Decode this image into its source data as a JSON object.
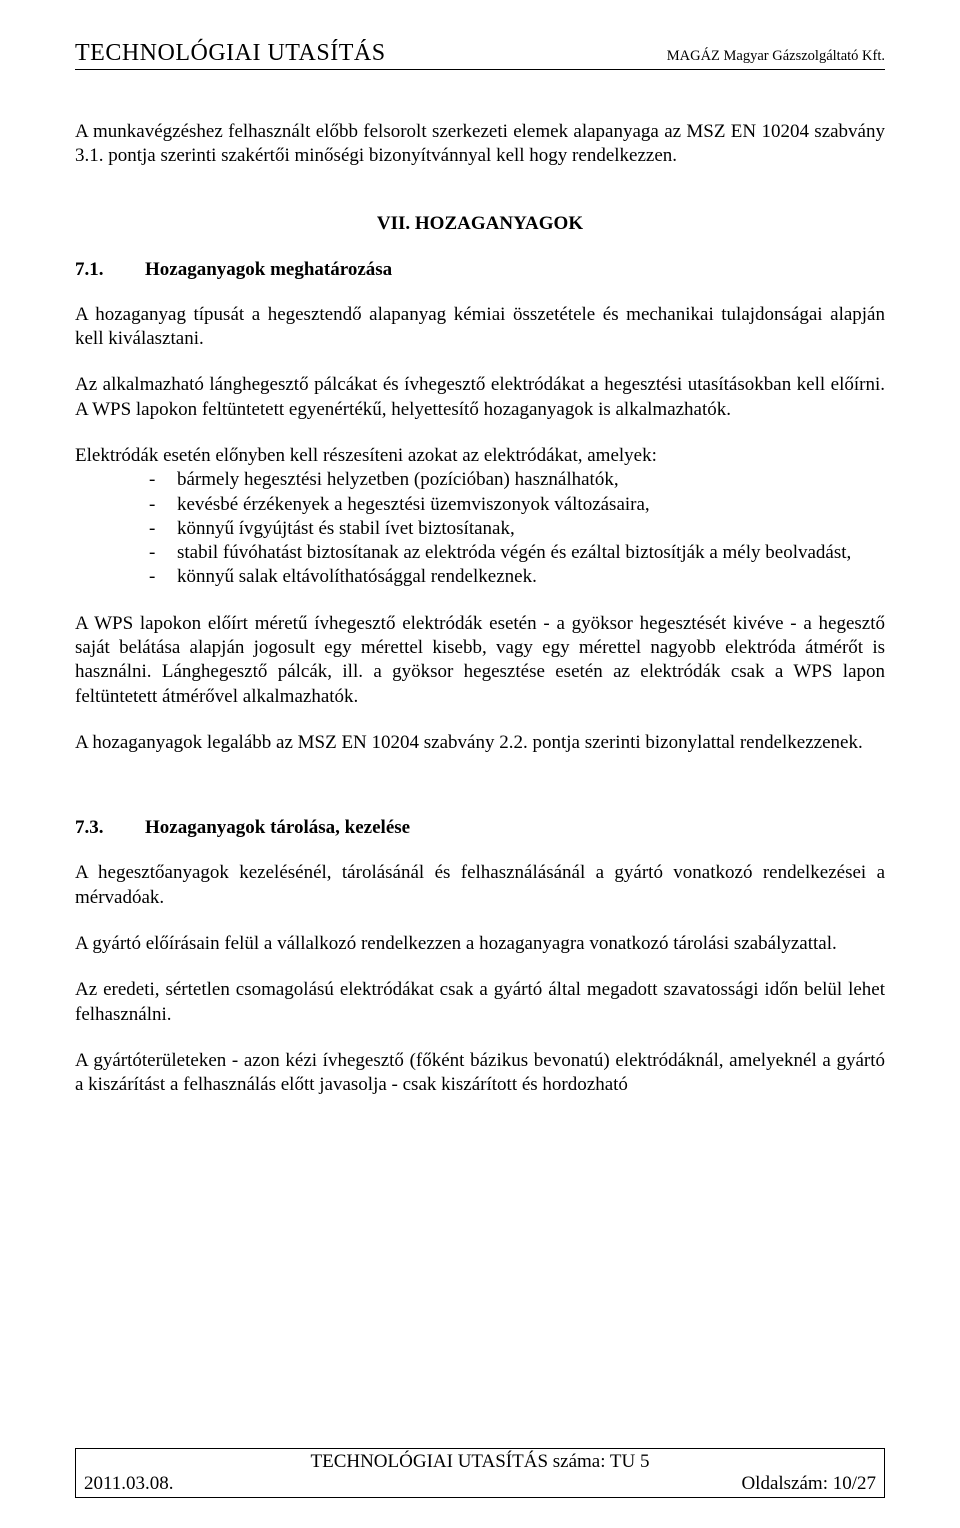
{
  "header": {
    "left": "TECHNOLÓGIAI UTASÍTÁS",
    "right": "MAGÁZ Magyar Gázszolgáltató Kft."
  },
  "intro": {
    "p1": "A munkavégzéshez felhasznált előbb felsorolt szerkezeti elemek alapanyaga az MSZ EN 10204 szabvány 3.1. pontja szerinti szakértői minőségi bizonyítvánnyal kell hogy rendelkezzen."
  },
  "section7": {
    "title": "VII.    HOZAGANYAGOK"
  },
  "section71": {
    "num": "7.1.",
    "title": "Hozaganyagok meghatározása",
    "p1": "A hozaganyag típusát a hegesztendő alapanyag kémiai összetétele és mechanikai tulajdonságai alapján kell kiválasztani.",
    "p2": "Az alkalmazható lánghegesztő pálcákat és ívhegesztő elektródákat a hegesztési utasításokban kell előírni. A WPS lapokon feltüntetett egyenértékű, helyettesítő hozaganyagok is alkalmazhatók.",
    "list_intro": "Elektródák esetén előnyben kell részesíteni azokat az elektródákat, amelyek:",
    "list": {
      "i1": "bármely hegesztési helyzetben (pozícióban) használhatók,",
      "i2": "kevésbé érzékenyek a hegesztési üzemviszonyok változásaira,",
      "i3": "könnyű ívgyújtást és stabil ívet biztosítanak,",
      "i4": "stabil fúvóhatást biztosítanak az elektróda végén és ezáltal biztosítják a mély beolvadást,",
      "i5": "könnyű salak eltávolíthatósággal rendelkeznek."
    },
    "p3": "A WPS lapokon előírt méretű ívhegesztő elektródák esetén - a gyöksor hegesztését kivéve - a hegesztő saját belátása alapján jogosult egy mérettel kisebb, vagy egy mérettel nagyobb elektróda átmérőt is használni. Lánghegesztő pálcák, ill. a gyöksor hegesztése esetén az elektródák csak a WPS lapon feltüntetett átmérővel alkalmazhatók.",
    "p4": "A hozaganyagok legalább az MSZ EN 10204 szabvány 2.2. pontja szerinti bizonylattal rendelkezzenek."
  },
  "section73": {
    "num": "7.3.",
    "title": "Hozaganyagok tárolása, kezelése",
    "p1": "A hegesztőanyagok kezelésénél, tárolásánál és felhasználásánál a gyártó vonatkozó rendelkezései a mérvadóak.",
    "p2": "A gyártó előírásain felül a vállalkozó rendelkezzen a hozaganyagra vonatkozó tárolási szabályzattal.",
    "p3": "Az eredeti, sértetlen csomagolású elektródákat csak a gyártó által megadott szavatossági időn belül lehet felhasználni.",
    "p4": "A gyártóterületeken - azon kézi ívhegesztő (főként bázikus bevonatú) elektródáknál, amelyeknél a gyártó a kiszárítást a felhasználás előtt javasolja - csak kiszárított és hordozható"
  },
  "footer": {
    "line1": "TECHNOLÓGIAI UTASÍTÁS száma: TU 5",
    "date": "2011.03.08.",
    "page": "Oldalszám: 10/27"
  }
}
